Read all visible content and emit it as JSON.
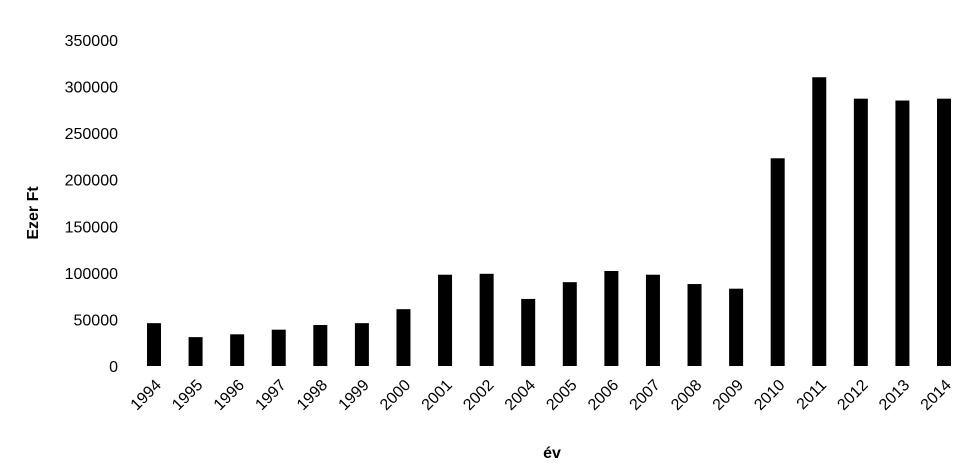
{
  "chart_data": {
    "type": "bar",
    "title": "",
    "xlabel": "év",
    "ylabel": "Ezer Ft",
    "ylim": [
      0,
      350000
    ],
    "yticks": [
      0,
      50000,
      100000,
      150000,
      200000,
      250000,
      300000,
      350000
    ],
    "grid": false,
    "legend": "none",
    "bar_color": "#000000",
    "categories": [
      "1994",
      "1995",
      "1996",
      "1997",
      "1998",
      "1999",
      "2000",
      "2001",
      "2002",
      "2004",
      "2005",
      "2006",
      "2007",
      "2008",
      "2009",
      "2010",
      "2011",
      "2012",
      "2013",
      "2014"
    ],
    "values": [
      46000,
      31000,
      34000,
      39000,
      44000,
      46000,
      61000,
      98000,
      99000,
      72000,
      90000,
      102000,
      98000,
      88000,
      83000,
      223000,
      310000,
      287000,
      285000,
      287000
    ]
  }
}
